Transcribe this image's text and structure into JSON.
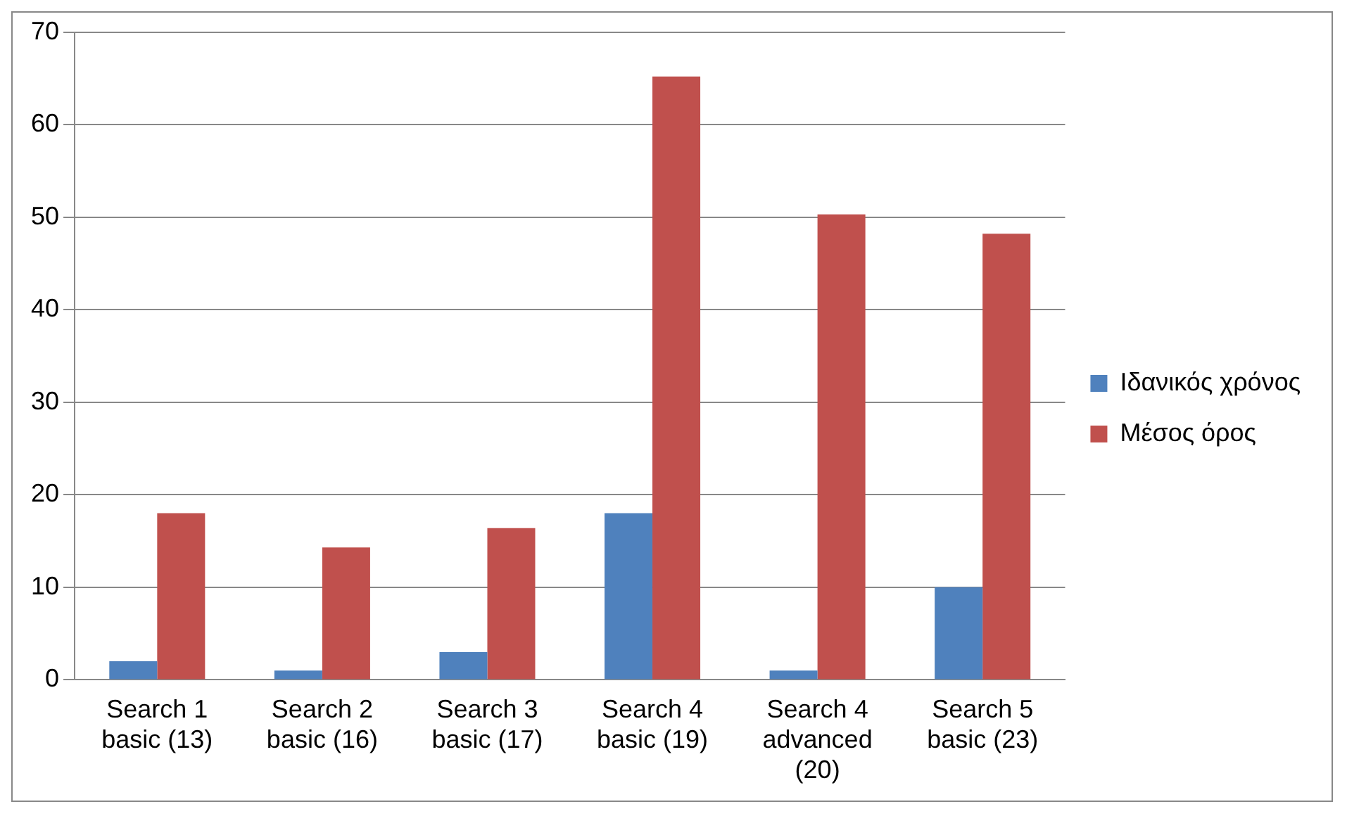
{
  "chart_data": {
    "type": "bar",
    "categories": [
      "Search 1\nbasic (13)",
      "Search 2\nbasic (16)",
      "Search 3\nbasic (17)",
      "Search 4\nbasic (19)",
      "Search 4\nadvanced\n(20)",
      "Search 5\nbasic (23)"
    ],
    "series": [
      {
        "name": "Ιδανικός χρόνος",
        "color": "#4f81bd",
        "values": [
          2,
          1,
          3,
          18,
          1,
          10
        ]
      },
      {
        "name": "Μέσος όρος",
        "color": "#c0504d",
        "values": [
          18,
          14.3,
          16.4,
          65.2,
          50.3,
          48.2
        ]
      }
    ],
    "ylim": [
      0,
      70
    ],
    "yticks": [
      0,
      10,
      20,
      30,
      40,
      50,
      60,
      70
    ],
    "grid": "y",
    "legend": "right"
  }
}
